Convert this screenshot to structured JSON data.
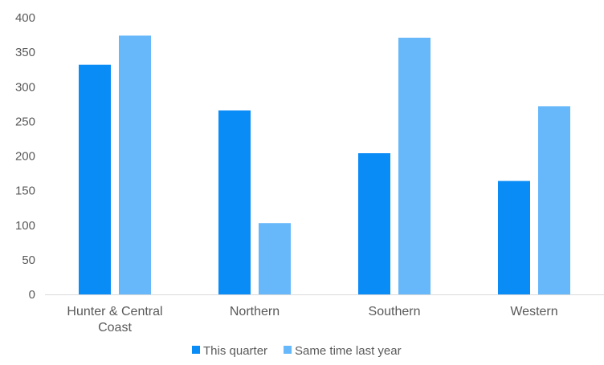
{
  "chart_data": {
    "type": "bar",
    "categories": [
      [
        "Hunter & Central",
        "Coast"
      ],
      [
        "Northern"
      ],
      [
        "Southern"
      ],
      [
        "Western"
      ]
    ],
    "series": [
      {
        "name": "This quarter",
        "values": [
          332,
          266,
          204,
          164
        ],
        "color": "#0a8cf7"
      },
      {
        "name": "Same time last year",
        "values": [
          374,
          103,
          371,
          272
        ],
        "color": "#66b8fb"
      }
    ],
    "ylim": [
      0,
      400
    ],
    "yticks": [
      "0",
      "50",
      "100",
      "150",
      "200",
      "250",
      "300",
      "350",
      "400"
    ],
    "grid": false,
    "legend_position": "bottom",
    "axis_color": "#d9d9d9",
    "text_color": "#595959"
  }
}
